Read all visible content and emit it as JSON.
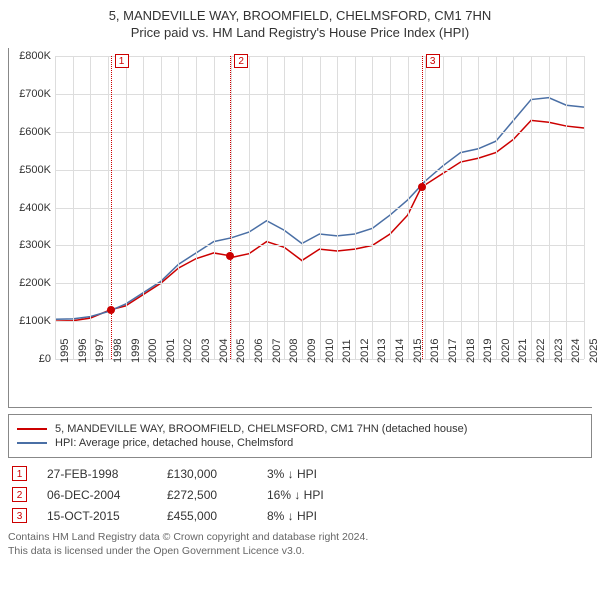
{
  "title_line1": "5, MANDEVILLE WAY, BROOMFIELD, CHELMSFORD, CM1 7HN",
  "title_line2": "Price paid vs. HM Land Registry's House Price Index (HPI)",
  "chart": {
    "type": "line",
    "background_color": "#ffffff",
    "grid_color": "#dddddd",
    "y_axis": {
      "min": 0,
      "max": 800000,
      "tick_step": 100000,
      "prefix": "£",
      "suffix": "K",
      "divisor": 1000,
      "label_fontsize": 11
    },
    "x_axis": {
      "min": 1995,
      "max": 2025,
      "ticks": [
        1995,
        1996,
        1997,
        1998,
        1999,
        2000,
        2001,
        2002,
        2003,
        2004,
        2005,
        2006,
        2007,
        2008,
        2009,
        2010,
        2011,
        2012,
        2013,
        2014,
        2015,
        2016,
        2017,
        2018,
        2019,
        2020,
        2021,
        2022,
        2023,
        2024,
        2025
      ],
      "label_fontsize": 11,
      "label_rotation": -90
    },
    "series": [
      {
        "name": "price_paid",
        "label": "5, MANDEVILLE WAY, BROOMFIELD, CHELMSFORD, CM1 7HN (detached house)",
        "color": "#cc0000",
        "line_width": 1.5,
        "data": [
          [
            1995,
            100000
          ],
          [
            1996,
            101000
          ],
          [
            1997,
            108000
          ],
          [
            1998.15,
            130000
          ],
          [
            1999,
            140000
          ],
          [
            2000,
            170000
          ],
          [
            2001,
            200000
          ],
          [
            2002,
            240000
          ],
          [
            2003,
            265000
          ],
          [
            2004,
            280000
          ],
          [
            2004.93,
            272500
          ],
          [
            2005,
            268000
          ],
          [
            2006,
            278000
          ],
          [
            2007,
            310000
          ],
          [
            2008,
            295000
          ],
          [
            2009,
            260000
          ],
          [
            2010,
            290000
          ],
          [
            2011,
            285000
          ],
          [
            2012,
            290000
          ],
          [
            2013,
            300000
          ],
          [
            2014,
            330000
          ],
          [
            2015,
            380000
          ],
          [
            2015.79,
            455000
          ],
          [
            2016,
            460000
          ],
          [
            2017,
            490000
          ],
          [
            2018,
            520000
          ],
          [
            2019,
            530000
          ],
          [
            2020,
            545000
          ],
          [
            2021,
            580000
          ],
          [
            2022,
            630000
          ],
          [
            2023,
            625000
          ],
          [
            2024,
            615000
          ],
          [
            2025,
            610000
          ]
        ]
      },
      {
        "name": "hpi",
        "label": "HPI: Average price, detached house, Chelmsford",
        "color": "#4a6fa5",
        "line_width": 1.5,
        "data": [
          [
            1995,
            105000
          ],
          [
            1996,
            106000
          ],
          [
            1997,
            112000
          ],
          [
            1998,
            125000
          ],
          [
            1999,
            145000
          ],
          [
            2000,
            175000
          ],
          [
            2001,
            205000
          ],
          [
            2002,
            250000
          ],
          [
            2003,
            280000
          ],
          [
            2004,
            310000
          ],
          [
            2005,
            320000
          ],
          [
            2006,
            335000
          ],
          [
            2007,
            365000
          ],
          [
            2008,
            340000
          ],
          [
            2009,
            305000
          ],
          [
            2010,
            330000
          ],
          [
            2011,
            325000
          ],
          [
            2012,
            330000
          ],
          [
            2013,
            345000
          ],
          [
            2014,
            380000
          ],
          [
            2015,
            420000
          ],
          [
            2016,
            470000
          ],
          [
            2017,
            510000
          ],
          [
            2018,
            545000
          ],
          [
            2019,
            555000
          ],
          [
            2020,
            575000
          ],
          [
            2021,
            630000
          ],
          [
            2022,
            685000
          ],
          [
            2023,
            690000
          ],
          [
            2024,
            670000
          ],
          [
            2025,
            665000
          ]
        ]
      }
    ],
    "markers": [
      {
        "id": "1",
        "year": 1998.15,
        "price": 130000,
        "color": "#cc0000"
      },
      {
        "id": "2",
        "year": 2004.93,
        "price": 272500,
        "color": "#cc0000"
      },
      {
        "id": "3",
        "year": 2015.79,
        "price": 455000,
        "color": "#cc0000"
      }
    ]
  },
  "legend": {
    "items": [
      {
        "color": "#cc0000",
        "label": "5, MANDEVILLE WAY, BROOMFIELD, CHELMSFORD, CM1 7HN (detached house)"
      },
      {
        "color": "#4a6fa5",
        "label": "HPI: Average price, detached house, Chelmsford"
      }
    ]
  },
  "transactions": [
    {
      "id": "1",
      "date": "27-FEB-1998",
      "price": "£130,000",
      "diff": "3% ↓ HPI",
      "color": "#cc0000"
    },
    {
      "id": "2",
      "date": "06-DEC-2004",
      "price": "£272,500",
      "diff": "16% ↓ HPI",
      "color": "#cc0000"
    },
    {
      "id": "3",
      "date": "15-OCT-2015",
      "price": "£455,000",
      "diff": "8% ↓ HPI",
      "color": "#cc0000"
    }
  ],
  "footer_line1": "Contains HM Land Registry data © Crown copyright and database right 2024.",
  "footer_line2": "This data is licensed under the Open Government Licence v3.0."
}
